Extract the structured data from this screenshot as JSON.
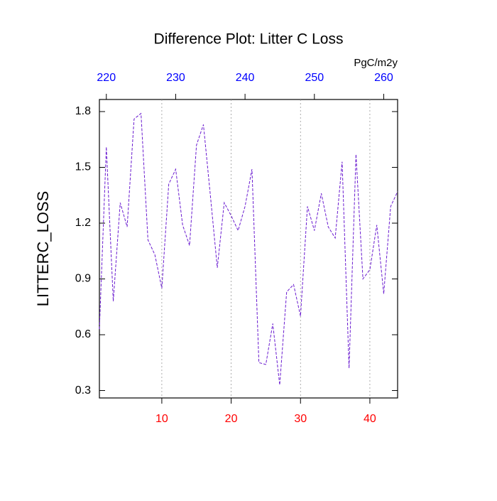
{
  "chart_data": {
    "type": "line",
    "title": "Difference Plot: Litter C Loss",
    "y_label": "LITTERC_LOSS",
    "top_axis_label": "PgC/m2y",
    "x": [
      1,
      2,
      3,
      4,
      5,
      6,
      7,
      8,
      9,
      10,
      11,
      12,
      13,
      14,
      15,
      16,
      17,
      18,
      19,
      20,
      21,
      22,
      23,
      24,
      25,
      26,
      27,
      28,
      29,
      30,
      31,
      32,
      33,
      34,
      35,
      36,
      37,
      38,
      39,
      40,
      41,
      42,
      43,
      44
    ],
    "series": [
      {
        "color": "#6a1bd0",
        "values": [
          0.63,
          1.61,
          0.78,
          1.31,
          1.18,
          1.76,
          1.79,
          1.11,
          1.03,
          0.85,
          1.41,
          1.49,
          1.19,
          1.08,
          1.62,
          1.73,
          1.35,
          0.96,
          1.31,
          1.24,
          1.16,
          1.29,
          1.49,
          0.45,
          0.44,
          0.66,
          0.33,
          0.83,
          0.87,
          0.7,
          1.29,
          1.16,
          1.36,
          1.18,
          1.12,
          1.53,
          0.42,
          1.57,
          0.9,
          0.95,
          1.19,
          0.82,
          1.29,
          1.37
        ]
      }
    ],
    "xlim": [
      1,
      44
    ],
    "xticks": [
      10,
      20,
      30,
      40
    ],
    "xtick_color": "#ff0000",
    "top_xlim": [
      219,
      262
    ],
    "top_xticks": [
      220,
      230,
      240,
      250,
      260
    ],
    "top_xtick_color": "#0000ff",
    "ylim": [
      0.26,
      1.865
    ],
    "yticks": [
      {
        "value": 0.3,
        "label": "0.3"
      },
      {
        "value": 0.6,
        "label": "0.6"
      },
      {
        "value": 0.9,
        "label": "0.9"
      },
      {
        "value": 1.2,
        "label": "1.2"
      },
      {
        "value": 1.5,
        "label": "1.5"
      },
      {
        "value": 1.8,
        "label": "1.8"
      }
    ],
    "grid": true,
    "dashed": true
  }
}
